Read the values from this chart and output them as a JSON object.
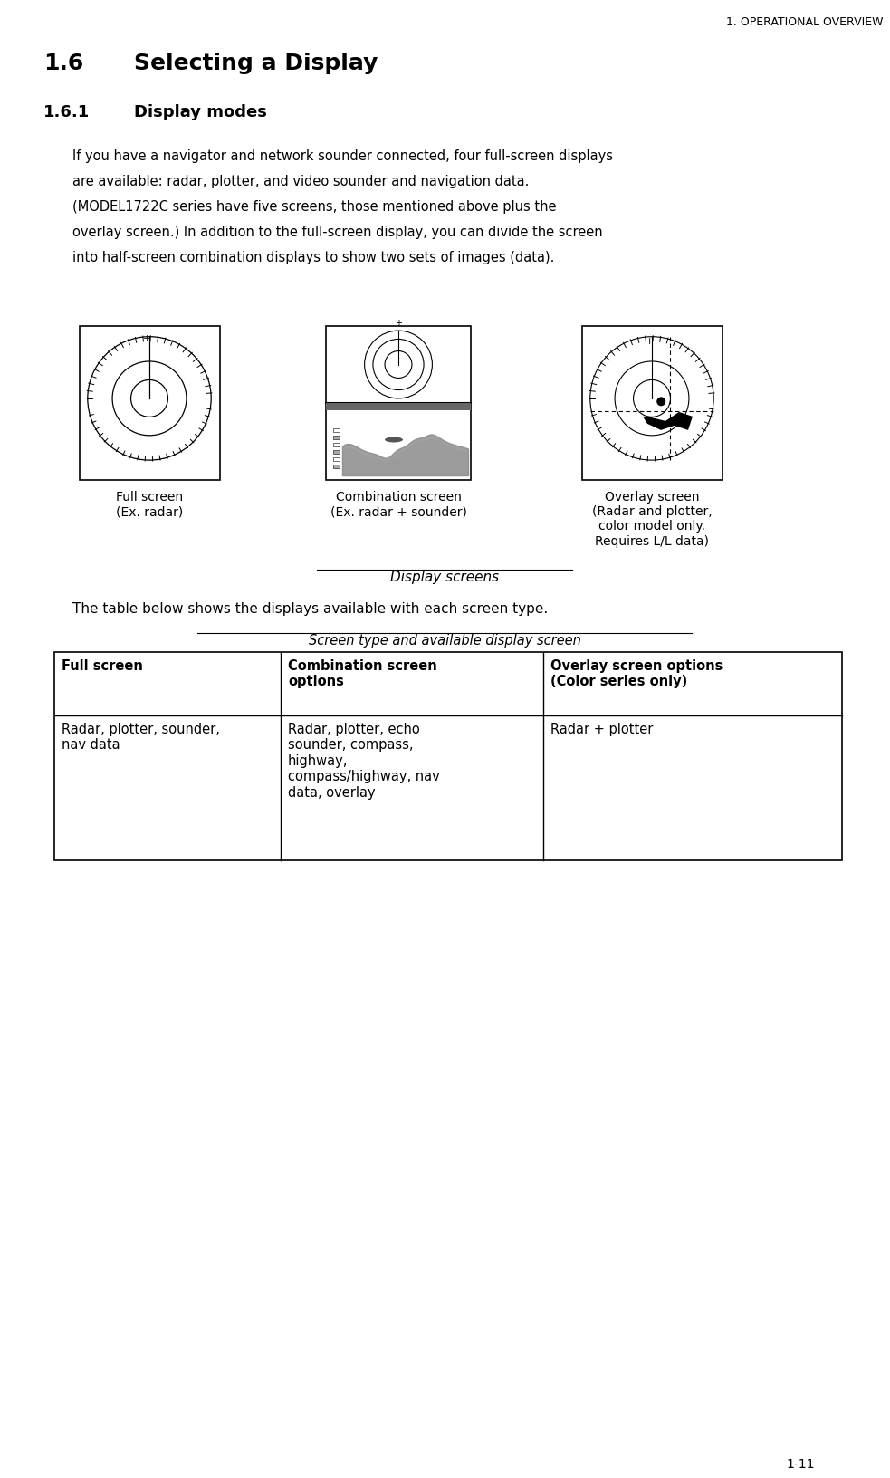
{
  "page_header": "1. OPERATIONAL OVERVIEW",
  "page_footer": "1-11",
  "section_title": "1.6    Selecting a Display",
  "subsection_title": "1.6.1    Display modes",
  "body_text": "If you have a navigator and network sounder connected, four full-screen displays\nare available: radar, plotter, and video sounder and navigation data.\n(MODEL1722C series have five screens, those mentioned above plus the\noverlay screen.) In addition to the full-screen display, you can divide the screen\ninto half-screen combination displays to show two sets of images (data).",
  "caption_center": "Display screens",
  "table_caption": "Screen type and available display screen",
  "table_headers": [
    "Full screen",
    "Combination screen\noptions",
    "Overlay screen options\n(Color series only)"
  ],
  "table_row": [
    "Radar, plotter, sounder,\nnav data",
    "Radar, plotter, echo\nsounder, compass,\nhighway,\ncompass/highway, nav\ndata, overlay",
    "Radar + plotter"
  ],
  "img1_label": "Full screen\n(Ex. radar)",
  "img2_label": "Combination screen\n(Ex. radar + sounder)",
  "img3_label": "Overlay screen\n(Radar and plotter,\ncolor model only.\nRequires L/L data)",
  "text_below_table": "The table below shows the displays available with each screen type.",
  "bg_color": "#ffffff",
  "text_color": "#000000",
  "line_color": "#000000"
}
